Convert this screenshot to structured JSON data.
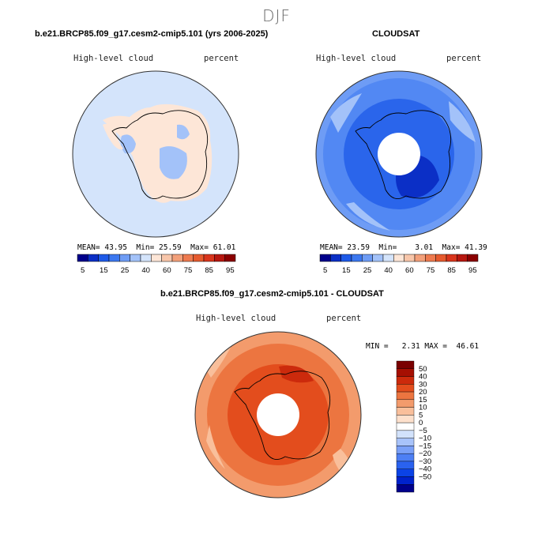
{
  "figure_title": "DJF",
  "colors": {
    "scale_a": [
      "#00008b",
      "#0b2fc6",
      "#1e5ae8",
      "#3c78f0",
      "#6e9cf5",
      "#a3c2f9",
      "#d4e4fb",
      "#fde6d7",
      "#f8c6aa",
      "#f3a07a",
      "#ee7a4f",
      "#e65a2e",
      "#d9351c",
      "#b7170f",
      "#8b0000"
    ],
    "scale_b": [
      "#00008b",
      "#0022cc",
      "#0b43e6",
      "#2a62ef",
      "#4d7ff4",
      "#7aa0f7",
      "#a8c3fa",
      "#d2e2fb",
      "#ffffff",
      "#fde0cc",
      "#f9bf9b",
      "#f39b6c",
      "#ec7540",
      "#e34d1d",
      "#cc2a0c",
      "#a60f02",
      "#7a0000"
    ]
  },
  "panels": {
    "model": {
      "title": "b.e21.BRCP85.f09_g17.cesm2-cmip5.101 (yrs 2006-2025)",
      "var_name": "High-level cloud",
      "units": "percent",
      "stats": {
        "mean_label": "MEAN=",
        "mean": "43.95",
        "min_label": "Min=",
        "min": "25.59",
        "max_label": "Max=",
        "max": "61.01"
      },
      "colorbar_labels": [
        "5",
        "15",
        "25",
        "40",
        "60",
        "75",
        "85",
        "95"
      ]
    },
    "obs": {
      "title": "CLOUDSAT",
      "var_name": "High-level cloud",
      "units": "percent",
      "stats": {
        "mean_label": "MEAN=",
        "mean": "23.59",
        "min_label": "Min=",
        "min": "3.01",
        "max_label": "Max=",
        "max": "41.39"
      },
      "colorbar_labels": [
        "5",
        "15",
        "25",
        "40",
        "60",
        "75",
        "85",
        "95"
      ]
    },
    "diff": {
      "title": "b.e21.BRCP85.f09_g17.cesm2-cmip5.101 - CLOUDSAT",
      "var_name": "High-level cloud",
      "units": "percent",
      "stats": {
        "min_label": "MIN =",
        "min": "2.31",
        "max_label": "MAX =",
        "max": "46.61"
      },
      "colorbar_labels": [
        "50",
        "40",
        "30",
        "20",
        "15",
        "10",
        "5",
        "0",
        "−5",
        "−10",
        "−15",
        "−20",
        "−30",
        "−40",
        "−50"
      ]
    }
  },
  "chart_data": [
    {
      "type": "heatmap",
      "title": "b.e21.BRCP85.f09_g17.cesm2-cmip5.101 (yrs 2006-2025)",
      "variable": "High-level cloud",
      "units": "percent",
      "projection": "south polar stereographic",
      "mean": 43.95,
      "min": 25.59,
      "max": 61.01,
      "contour_levels": [
        5,
        10,
        15,
        20,
        25,
        30,
        40,
        50,
        60,
        70,
        75,
        80,
        85,
        90,
        95
      ]
    },
    {
      "type": "heatmap",
      "title": "CLOUDSAT",
      "variable": "High-level cloud",
      "units": "percent",
      "projection": "south polar stereographic",
      "mean": 23.59,
      "min": 3.01,
      "max": 41.39,
      "contour_levels": [
        5,
        10,
        15,
        20,
        25,
        30,
        40,
        50,
        60,
        70,
        75,
        80,
        85,
        90,
        95
      ]
    },
    {
      "type": "heatmap",
      "title": "b.e21.BRCP85.f09_g17.cesm2-cmip5.101 - CLOUDSAT",
      "variable": "High-level cloud",
      "units": "percent",
      "projection": "south polar stereographic",
      "min": 2.31,
      "max": 46.61,
      "contour_levels": [
        -50,
        -40,
        -30,
        -20,
        -15,
        -10,
        -5,
        0,
        5,
        10,
        15,
        20,
        30,
        40,
        50
      ]
    }
  ]
}
